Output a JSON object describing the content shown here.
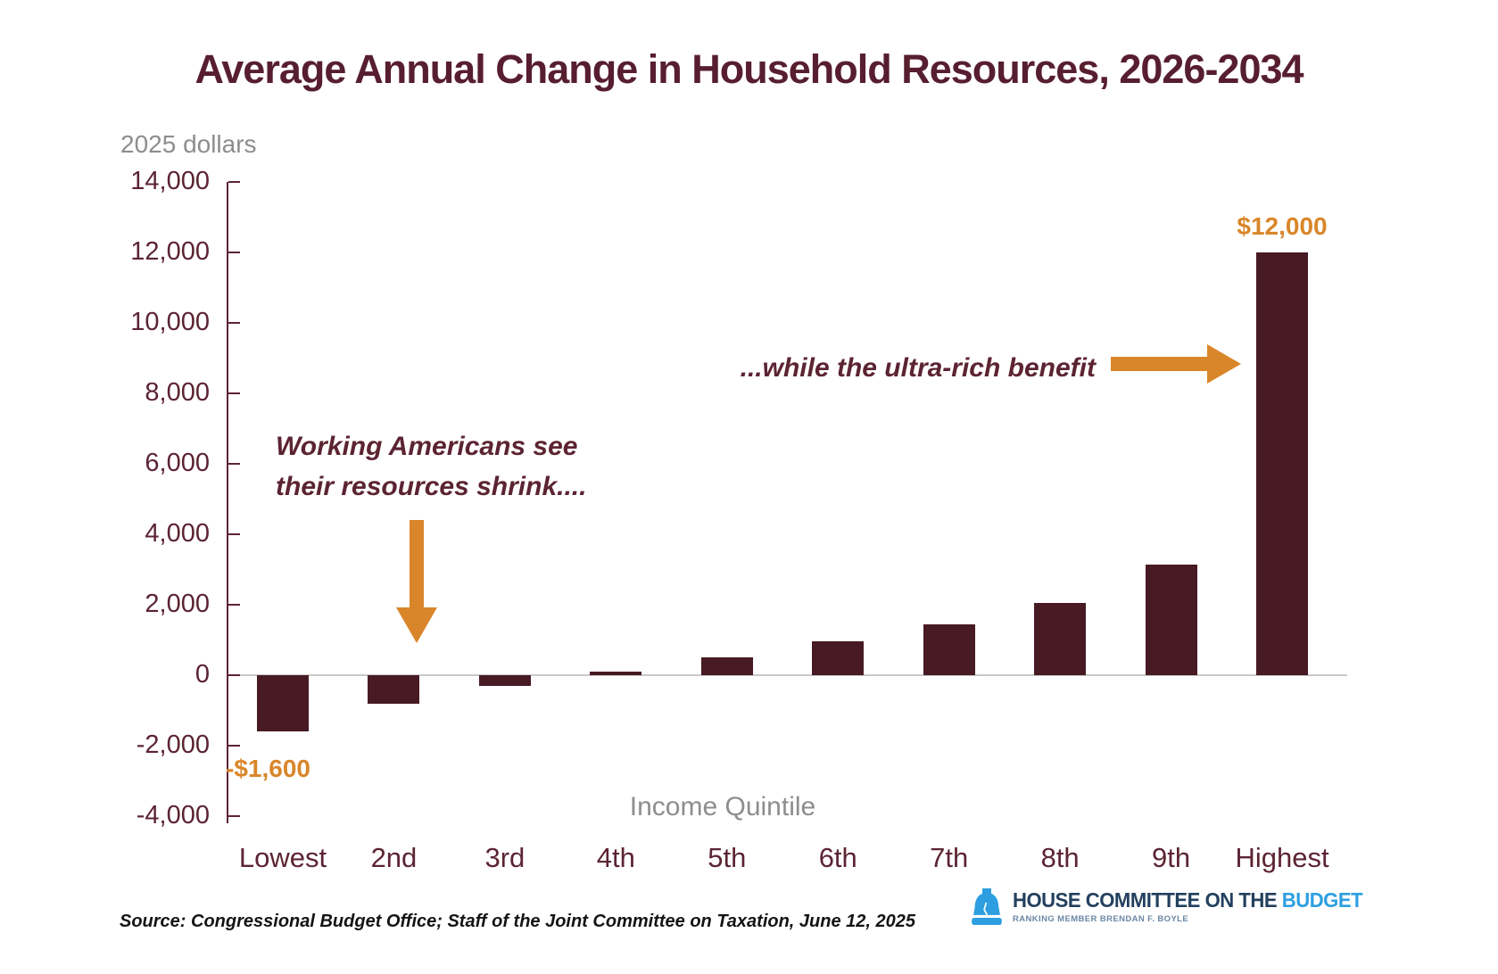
{
  "title": "Average Annual Change in Household Resources, 2026-2034",
  "y_axis_unit_label": "2025 dollars",
  "x_axis_title": "Income Quintile",
  "source_note": "Source: Congressional Budget Office; Staff of the Joint Committee on Taxation, June 12, 2025",
  "annotations": {
    "left_line1": "Working Americans see",
    "left_line2": "their resources shrink....",
    "right": "...while the ultra-rich benefit",
    "min_bar_label": "-$1,600",
    "max_bar_label": "$12,000"
  },
  "logo": {
    "org": "HOUSE COMMITTEE ON THE",
    "org_highlight": "BUDGET",
    "subtitle": "RANKING MEMBER BRENDAN F. BOYLE",
    "bell_icon": "liberty-bell-icon"
  },
  "colors": {
    "bar": "#471a24",
    "accent_orange": "#d9862a",
    "title_maroon": "#571e2f",
    "axis_text_maroon": "#5c2433",
    "gray_text": "#8d8d8d",
    "zero_line_gray": "#c9c9c9",
    "logo_navy": "#23405e",
    "logo_blue": "#2d9fe0"
  },
  "chart_data": {
    "type": "bar",
    "title": "Average Annual Change in Household Resources, 2026-2034",
    "xlabel": "Income Quintile",
    "ylabel": "2025 dollars",
    "categories": [
      "Lowest",
      "2nd",
      "3rd",
      "4th",
      "5th",
      "6th",
      "7th",
      "8th",
      "9th",
      "Highest"
    ],
    "values": [
      -1600,
      -800,
      -300,
      100,
      500,
      950,
      1450,
      2050,
      3150,
      12000
    ],
    "ylim": [
      -4000,
      14000
    ],
    "ytick_step": 2000,
    "ytick_labels": [
      "14,000",
      "12,000",
      "10,000",
      "8,000",
      "6,000",
      "4,000",
      "2,000",
      "0",
      "-2,000",
      "-4,000"
    ],
    "grid": false,
    "legend": "none",
    "data_labels": [
      {
        "category": "Lowest",
        "label": "-$1,600"
      },
      {
        "category": "Highest",
        "label": "$12,000"
      }
    ]
  }
}
